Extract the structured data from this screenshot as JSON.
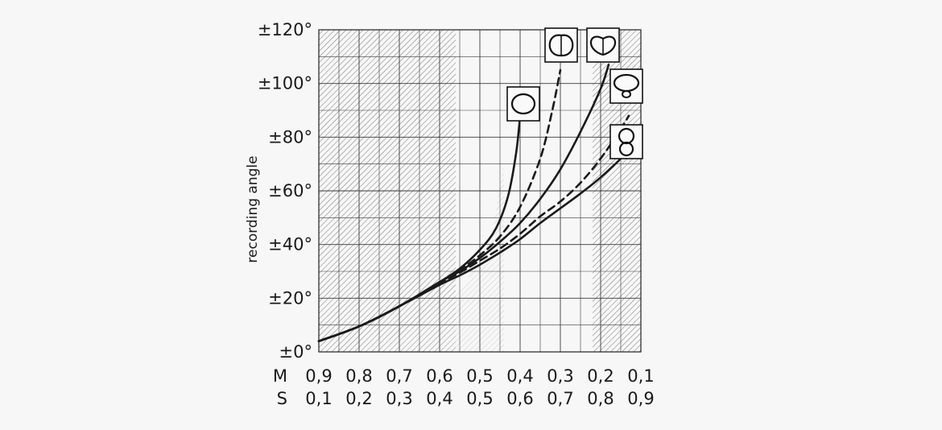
{
  "chart_data": {
    "type": "line",
    "title": "",
    "ylabel": "recording angle",
    "ylim": [
      0,
      120
    ],
    "yticks": [
      0,
      20,
      40,
      60,
      80,
      100,
      120
    ],
    "ytick_labels": [
      "±0°",
      "±20°",
      "±40°",
      "±60°",
      "±80°",
      "±100°",
      "±120°"
    ],
    "x_ratio_rows": [
      {
        "name": "M",
        "labels": [
          "0,9",
          "0,8",
          "0,7",
          "0,6",
          "0,5",
          "0,4",
          "0,3",
          "0,2",
          "0,1"
        ]
      },
      {
        "name": "S",
        "labels": [
          "0,1",
          "0,2",
          "0,3",
          "0,4",
          "0,5",
          "0,6",
          "0,7",
          "0,8",
          "0,9"
        ]
      }
    ],
    "x_axis_quantity": "M",
    "xlim": [
      0.9,
      0.1
    ],
    "grid": true,
    "shaded_regions": [
      {
        "ranges_x": [
          [
            0.9,
            0.56
          ],
          [
            0.22,
            0.1
          ]
        ]
      }
    ],
    "series": [
      {
        "pattern": "omni",
        "style": "solid",
        "x": [
          0.9,
          0.8,
          0.7,
          0.6,
          0.55,
          0.5,
          0.46,
          0.43,
          0.41,
          0.4
        ],
        "y": [
          4,
          9.5,
          17,
          26,
          31,
          38,
          46,
          58,
          74,
          88
        ]
      },
      {
        "pattern": "subcardioid",
        "style": "dashed",
        "x": [
          0.9,
          0.8,
          0.7,
          0.6,
          0.55,
          0.5,
          0.45,
          0.4,
          0.35,
          0.32,
          0.3
        ],
        "y": [
          4,
          9.5,
          17,
          26,
          30.5,
          36,
          43,
          54,
          72,
          90,
          105
        ]
      },
      {
        "pattern": "cardioid",
        "style": "solid",
        "x": [
          0.9,
          0.8,
          0.7,
          0.6,
          0.55,
          0.5,
          0.45,
          0.4,
          0.35,
          0.3,
          0.25,
          0.2,
          0.18
        ],
        "y": [
          4,
          9.5,
          17,
          26,
          30,
          35,
          41,
          48,
          57,
          68,
          82,
          98,
          107
        ]
      },
      {
        "pattern": "supercardioid",
        "style": "dashed",
        "x": [
          0.9,
          0.8,
          0.7,
          0.6,
          0.55,
          0.5,
          0.45,
          0.4,
          0.35,
          0.3,
          0.25,
          0.2,
          0.15,
          0.13
        ],
        "y": [
          4,
          9.5,
          17,
          25.5,
          29.5,
          34,
          38.5,
          44,
          50.5,
          56,
          63,
          72,
          83,
          88
        ]
      },
      {
        "pattern": "figure-8",
        "style": "solid",
        "x": [
          0.9,
          0.8,
          0.7,
          0.6,
          0.55,
          0.5,
          0.45,
          0.4,
          0.35,
          0.3,
          0.25,
          0.2,
          0.15,
          0.12
        ],
        "y": [
          4,
          9.5,
          17,
          25,
          28.5,
          32.5,
          37,
          42,
          48,
          53.5,
          59,
          65,
          72,
          77
        ]
      }
    ],
    "pattern_icons": [
      "omni",
      "subcardioid",
      "cardioid",
      "supercardioid",
      "figure-8"
    ],
    "colors": {
      "line": "#1a1a1a",
      "grid": "#3a3a3a",
      "hatch": "#555555",
      "background": "#f7f7f7"
    }
  }
}
